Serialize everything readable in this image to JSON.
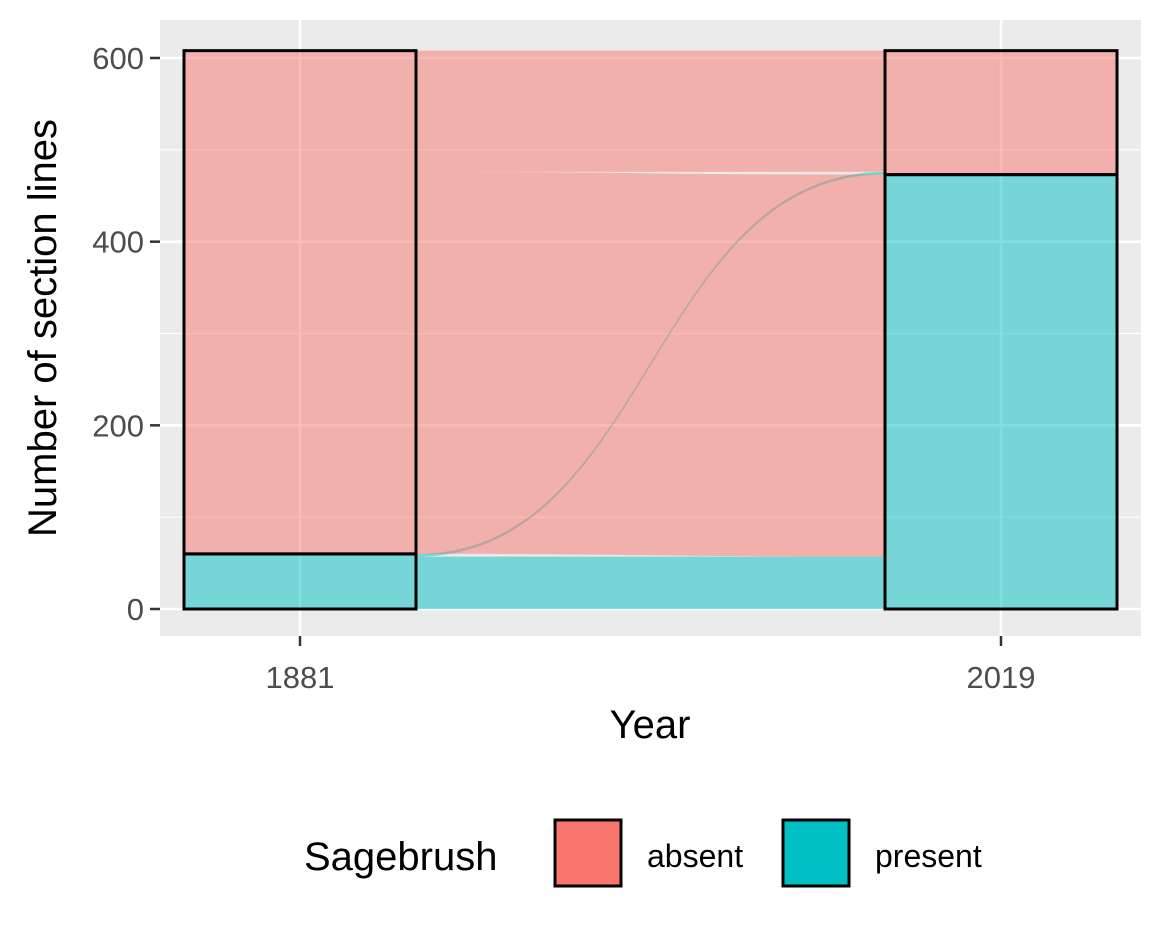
{
  "chart_data": {
    "type": "alluvial",
    "xlabel": "Year",
    "ylabel": "Number of section lines",
    "x_categories": [
      "1881",
      "2019"
    ],
    "ylim": [
      0,
      635
    ],
    "y_ticks": [
      0,
      200,
      400,
      600
    ],
    "grid": true,
    "legend": {
      "title": "Sagebrush",
      "position": "bottom",
      "entries": [
        {
          "label": "absent",
          "color": "#F8766D"
        },
        {
          "label": "present",
          "color": "#00BFC4"
        }
      ]
    },
    "strata": [
      {
        "x": "1881",
        "values": [
          {
            "category": "present",
            "value": 60
          },
          {
            "category": "absent",
            "value": 548
          }
        ]
      },
      {
        "x": "2019",
        "values": [
          {
            "category": "present",
            "value": 473
          },
          {
            "category": "absent",
            "value": 135
          }
        ]
      }
    ],
    "flows": [
      {
        "from": "present",
        "to": "present",
        "value": 57
      },
      {
        "from": "present",
        "to": "absent",
        "value": 3
      },
      {
        "from": "absent",
        "to": "present",
        "value": 416
      },
      {
        "from": "absent",
        "to": "absent",
        "value": 132
      }
    ]
  }
}
